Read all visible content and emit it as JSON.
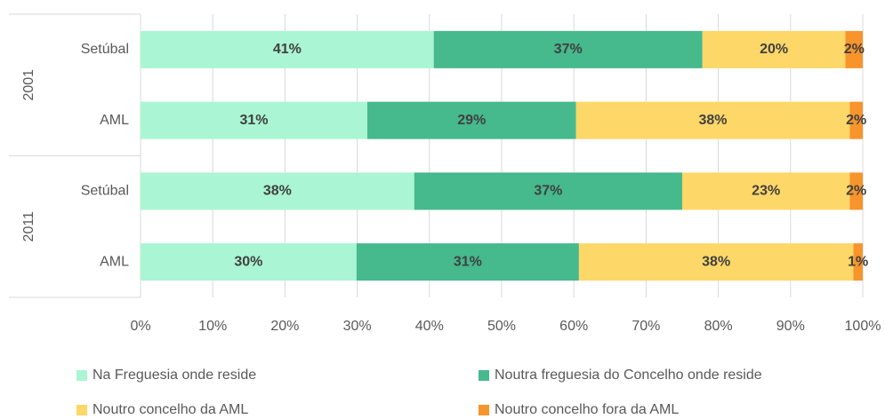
{
  "chart_data": {
    "type": "stacked-bar-horizontal",
    "groups": [
      {
        "name": "2001",
        "categories": [
          "Setúbal",
          "AML"
        ]
      },
      {
        "name": "2011",
        "categories": [
          "Setúbal",
          "AML"
        ]
      }
    ],
    "series": [
      {
        "name": "Na Freguesia onde reside",
        "color": "#aaf5d3",
        "values": [
          40.6,
          31.4,
          37.9,
          29.9
        ],
        "value_labels": [
          "41%",
          "31%",
          "38%",
          "30%"
        ]
      },
      {
        "name": "Noutra freguesia do Concelho onde reside",
        "color": "#46b98d",
        "values": [
          37.2,
          28.9,
          37.1,
          30.8
        ],
        "value_labels": [
          "37%",
          "29%",
          "37%",
          "31%"
        ]
      },
      {
        "name": "Noutro concelho da AML",
        "color": "#fdd768",
        "values": [
          19.8,
          37.9,
          23.2,
          38.0
        ],
        "value_labels": [
          "20%",
          "38%",
          "23%",
          "38%"
        ]
      },
      {
        "name": "Noutro concelho fora da AML",
        "color": "#f7942c",
        "values": [
          2.4,
          1.8,
          1.8,
          1.3
        ],
        "value_labels": [
          "2%",
          "2%",
          "2%",
          "1%"
        ]
      }
    ],
    "xlim": [
      0,
      100
    ],
    "xticks": [
      {
        "value": 0,
        "label": "0%"
      },
      {
        "value": 10,
        "label": "10%"
      },
      {
        "value": 20,
        "label": "20%"
      },
      {
        "value": 30,
        "label": "30%"
      },
      {
        "value": 40,
        "label": "40%"
      },
      {
        "value": 50,
        "label": "50%"
      },
      {
        "value": 60,
        "label": "60%"
      },
      {
        "value": 70,
        "label": "70%"
      },
      {
        "value": 80,
        "label": "80%"
      },
      {
        "value": 90,
        "label": "90%"
      },
      {
        "value": 100,
        "label": "100%"
      }
    ],
    "grid": true,
    "legend": "bottom"
  }
}
